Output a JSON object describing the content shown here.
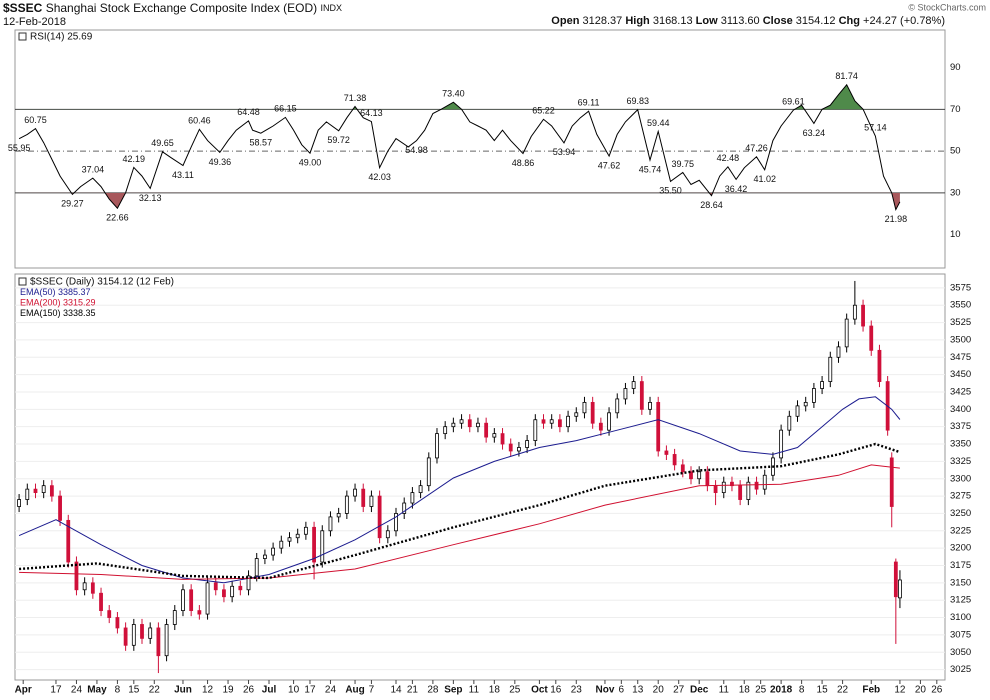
{
  "header": {
    "symbol": "$SSEC",
    "name": "Shanghai Stock Exchange Composite Index (EOD)",
    "exchange": "INDX",
    "date": "12-Feb-2018",
    "watermark": "© StockCharts.com",
    "quote": [
      {
        "label": "Open",
        "value": "3128.37"
      },
      {
        "label": "High",
        "value": "3168.13"
      },
      {
        "label": "Low",
        "value": "3113.60"
      },
      {
        "label": "Close",
        "value": "3154.12"
      },
      {
        "label": "Chg",
        "value": "+24.27 (+0.78%)"
      }
    ]
  },
  "chart_data": [
    {
      "type": "line",
      "label": "RSI(14) 25.69",
      "color": "#000000",
      "overbought": 70,
      "oversold": 30,
      "midline": 50,
      "overbought_color": "#4f8a4a",
      "oversold_color": "#a8585c",
      "x": [
        0,
        2,
        4,
        6,
        8,
        10,
        13,
        15,
        18,
        20,
        22,
        24,
        26,
        28,
        30,
        32,
        35,
        37,
        40,
        42,
        44,
        46,
        49,
        51,
        53,
        56,
        57,
        59,
        62,
        65,
        67,
        69,
        71,
        73,
        75,
        78,
        80,
        82,
        84,
        86,
        88,
        90,
        92,
        95,
        97,
        99,
        101,
        103,
        106,
        108,
        110,
        112,
        114,
        116,
        118,
        120,
        123,
        125,
        128,
        130,
        133,
        135,
        137,
        139,
        141,
        144,
        146,
        148,
        151,
        154,
        156,
        159,
        162,
        164,
        166,
        169,
        171,
        173,
        175,
        177,
        180,
        182,
        184,
        186,
        189,
        191,
        194,
        196,
        198,
        200,
        202,
        204,
        206,
        209,
        211,
        213,
        214,
        215
      ],
      "values": [
        55.95,
        58,
        60.75,
        54,
        46,
        38,
        29.27,
        33,
        37.04,
        33,
        27,
        22.66,
        30,
        42.19,
        38,
        32.13,
        49.65,
        47,
        43.11,
        52,
        60.46,
        55,
        49.36,
        55,
        60,
        64.48,
        60,
        58.57,
        62,
        66.15,
        60,
        53,
        49,
        60,
        64,
        59.72,
        66,
        71.38,
        66,
        64.13,
        42.03,
        50,
        56,
        52,
        54.98,
        60,
        68,
        70,
        73.4,
        70,
        64,
        62,
        60,
        55,
        60,
        55,
        48.86,
        57,
        65.22,
        62,
        53.94,
        62,
        66,
        69.11,
        58,
        47.62,
        58,
        64,
        69.83,
        45.74,
        59.44,
        35.5,
        39.75,
        34,
        36,
        28.64,
        38,
        42.48,
        36.42,
        42,
        47.26,
        41.02,
        55,
        62,
        69.61,
        72,
        63.24,
        70,
        72,
        77,
        81.74,
        74,
        70,
        57.14,
        38,
        30,
        21.98,
        25.69
      ],
      "value_labels": [
        "55.95",
        null,
        "60.75",
        null,
        null,
        null,
        "29.27",
        null,
        "37.04",
        null,
        null,
        "22.66",
        null,
        "42.19",
        null,
        "32.13",
        "49.65",
        null,
        "43.11",
        null,
        "60.46",
        null,
        "49.36",
        null,
        null,
        "64.48",
        null,
        "58.57",
        null,
        "66.15",
        null,
        null,
        "49.00",
        null,
        null,
        "59.72",
        null,
        "71.38",
        null,
        "64.13",
        "42.03",
        null,
        null,
        null,
        "54.98",
        null,
        null,
        null,
        "73.40",
        null,
        null,
        null,
        null,
        null,
        null,
        null,
        "48.86",
        null,
        "65.22",
        null,
        "53.94",
        null,
        null,
        "69.11",
        null,
        "47.62",
        null,
        null,
        "69.83",
        "45.74",
        "59.44",
        "35.50",
        "39.75",
        null,
        null,
        "28.64",
        null,
        "42.48",
        "36.42",
        null,
        "47.26",
        "41.02",
        null,
        null,
        "69.61",
        null,
        "63.24",
        null,
        null,
        null,
        "81.74",
        null,
        null,
        "57.14",
        null,
        null,
        "21.98",
        null
      ],
      "xlim": [
        -1,
        226
      ],
      "ylim": [
        -6,
        108
      ],
      "yticks": [
        10,
        30,
        50,
        70,
        90
      ]
    },
    {
      "type": "candlestick",
      "label": "$SSEC (Daily) 3154.12 (12 Feb)",
      "up_color": "#000000",
      "down_color": "#d0103a",
      "x": [
        0,
        2,
        4,
        6,
        8,
        10,
        12,
        14,
        16,
        18,
        20,
        22,
        24,
        26,
        28,
        30,
        32,
        34,
        36,
        38,
        40,
        42,
        44,
        46,
        48,
        50,
        52,
        54,
        56,
        58,
        60,
        62,
        64,
        66,
        68,
        70,
        72,
        74,
        76,
        78,
        80,
        82,
        84,
        86,
        88,
        90,
        92,
        94,
        96,
        98,
        100,
        102,
        104,
        106,
        108,
        110,
        112,
        114,
        116,
        118,
        120,
        122,
        124,
        126,
        128,
        130,
        132,
        134,
        136,
        138,
        140,
        142,
        144,
        146,
        148,
        150,
        152,
        154,
        156,
        158,
        160,
        162,
        164,
        166,
        168,
        170,
        172,
        174,
        176,
        178,
        180,
        182,
        184,
        186,
        188,
        190,
        192,
        194,
        196,
        198,
        200,
        202,
        204,
        206,
        208,
        210,
        212,
        213,
        214,
        215
      ],
      "open": [
        3260,
        3270,
        3285,
        3280,
        3290,
        3275,
        3240,
        3180,
        3140,
        3150,
        3135,
        3110,
        3100,
        3085,
        3060,
        3090,
        3070,
        3085,
        3045,
        3090,
        3110,
        3140,
        3110,
        3105,
        3150,
        3140,
        3130,
        3145,
        3140,
        3160,
        3185,
        3190,
        3200,
        3210,
        3215,
        3220,
        3230,
        3180,
        3225,
        3245,
        3250,
        3275,
        3285,
        3260,
        3275,
        3215,
        3225,
        3250,
        3265,
        3280,
        3290,
        3330,
        3365,
        3375,
        3380,
        3385,
        3375,
        3380,
        3360,
        3365,
        3350,
        3340,
        3345,
        3355,
        3385,
        3380,
        3385,
        3375,
        3390,
        3395,
        3410,
        3380,
        3370,
        3395,
        3415,
        3430,
        3440,
        3400,
        3410,
        3340,
        3335,
        3320,
        3310,
        3300,
        3310,
        3290,
        3280,
        3295,
        3290,
        3270,
        3295,
        3285,
        3305,
        3330,
        3370,
        3390,
        3405,
        3410,
        3430,
        3440,
        3475,
        3490,
        3530,
        3550,
        3520,
        3485,
        3440,
        3330,
        3180,
        3128.37
      ],
      "high": [
        3278,
        3293,
        3293,
        3298,
        3298,
        3283,
        3248,
        3188,
        3158,
        3158,
        3143,
        3118,
        3108,
        3093,
        3098,
        3098,
        3093,
        3093,
        3098,
        3118,
        3148,
        3148,
        3118,
        3158,
        3158,
        3148,
        3153,
        3153,
        3168,
        3193,
        3198,
        3208,
        3218,
        3223,
        3228,
        3238,
        3238,
        3233,
        3253,
        3258,
        3283,
        3293,
        3293,
        3283,
        3283,
        3233,
        3258,
        3273,
        3288,
        3298,
        3338,
        3373,
        3383,
        3388,
        3393,
        3393,
        3388,
        3388,
        3373,
        3373,
        3358,
        3353,
        3363,
        3393,
        3393,
        3393,
        3393,
        3398,
        3403,
        3418,
        3418,
        3388,
        3403,
        3423,
        3438,
        3448,
        3448,
        3418,
        3418,
        3348,
        3343,
        3328,
        3318,
        3318,
        3318,
        3298,
        3303,
        3303,
        3298,
        3303,
        3303,
        3313,
        3338,
        3378,
        3398,
        3413,
        3418,
        3438,
        3448,
        3483,
        3498,
        3538,
        3585,
        3558,
        3528,
        3493,
        3448,
        3338,
        3185,
        3168.13
      ],
      "low": [
        3252,
        3262,
        3272,
        3272,
        3267,
        3232,
        3172,
        3132,
        3132,
        3127,
        3102,
        3092,
        3077,
        3052,
        3052,
        3062,
        3062,
        3020,
        3037,
        3082,
        3102,
        3102,
        3097,
        3097,
        3132,
        3122,
        3122,
        3132,
        3132,
        3152,
        3177,
        3182,
        3192,
        3202,
        3207,
        3212,
        3155,
        3172,
        3217,
        3237,
        3242,
        3267,
        3252,
        3252,
        3207,
        3207,
        3217,
        3242,
        3257,
        3272,
        3282,
        3322,
        3357,
        3367,
        3372,
        3367,
        3367,
        3352,
        3352,
        3342,
        3332,
        3332,
        3337,
        3347,
        3372,
        3372,
        3367,
        3367,
        3382,
        3387,
        3372,
        3362,
        3362,
        3387,
        3407,
        3422,
        3392,
        3392,
        3332,
        3327,
        3312,
        3302,
        3292,
        3292,
        3282,
        3262,
        3272,
        3282,
        3262,
        3262,
        3277,
        3277,
        3297,
        3322,
        3362,
        3382,
        3397,
        3402,
        3422,
        3432,
        3467,
        3482,
        3522,
        3512,
        3477,
        3432,
        3362,
        3230,
        3062,
        3113.6
      ],
      "close": [
        3270,
        3285,
        3280,
        3290,
        3275,
        3240,
        3180,
        3140,
        3150,
        3135,
        3110,
        3100,
        3085,
        3060,
        3090,
        3070,
        3085,
        3045,
        3090,
        3110,
        3140,
        3110,
        3105,
        3150,
        3140,
        3130,
        3145,
        3140,
        3160,
        3185,
        3190,
        3200,
        3210,
        3215,
        3220,
        3230,
        3180,
        3225,
        3245,
        3250,
        3275,
        3285,
        3260,
        3275,
        3215,
        3225,
        3250,
        3265,
        3280,
        3290,
        3330,
        3365,
        3375,
        3380,
        3385,
        3375,
        3380,
        3360,
        3365,
        3350,
        3340,
        3345,
        3355,
        3385,
        3380,
        3385,
        3375,
        3390,
        3395,
        3410,
        3380,
        3370,
        3395,
        3415,
        3430,
        3440,
        3400,
        3410,
        3340,
        3335,
        3320,
        3310,
        3300,
        3310,
        3290,
        3280,
        3295,
        3290,
        3270,
        3295,
        3285,
        3305,
        3330,
        3370,
        3390,
        3405,
        3410,
        3430,
        3440,
        3475,
        3490,
        3530,
        3550,
        3520,
        3485,
        3440,
        3370,
        3260,
        3130,
        3154.12
      ],
      "series": [
        {
          "name": "EMA(50)",
          "color": "#1c1c8f",
          "style": "solid",
          "x": [
            0,
            9,
            20,
            30,
            40,
            50,
            61,
            72,
            82,
            92,
            106,
            116,
            127,
            136,
            146,
            156,
            166,
            176,
            184,
            190,
            196,
            201,
            205,
            209,
            213,
            215
          ],
          "values": [
            3218,
            3241,
            3205,
            3175,
            3157,
            3150,
            3162,
            3185,
            3212,
            3245,
            3301,
            3325,
            3345,
            3355,
            3370,
            3385,
            3365,
            3340,
            3335,
            3345,
            3375,
            3400,
            3415,
            3418,
            3400,
            3385.37
          ]
        },
        {
          "name": "EMA(200)",
          "color": "#d01030",
          "style": "solid",
          "x": [
            0,
            20,
            40,
            61,
            82,
            106,
            127,
            143,
            166,
            186,
            200,
            208,
            215
          ],
          "values": [
            3165,
            3162,
            3155,
            3157,
            3170,
            3205,
            3235,
            3262,
            3290,
            3292,
            3305,
            3320,
            3315.29
          ]
        },
        {
          "name": "EMA(150)",
          "color": "#000000",
          "style": "dotted",
          "x": [
            0,
            19,
            40,
            61,
            82,
            106,
            127,
            143,
            166,
            186,
            200,
            209,
            215
          ],
          "values": [
            3170,
            3178,
            3160,
            3157,
            3190,
            3230,
            3262,
            3290,
            3312,
            3318,
            3335,
            3350,
            3338.35
          ]
        }
      ],
      "xlim": [
        -1,
        226
      ],
      "xticks": [
        {
          "value": 1,
          "label": "Apr"
        },
        {
          "value": 9,
          "label": "17"
        },
        {
          "value": 14,
          "label": "24"
        },
        {
          "value": 19,
          "label": "May"
        },
        {
          "value": 24,
          "label": "8"
        },
        {
          "value": 28,
          "label": "15"
        },
        {
          "value": 33,
          "label": "22"
        },
        {
          "value": 40,
          "label": "Jun"
        },
        {
          "value": 46,
          "label": "12"
        },
        {
          "value": 51,
          "label": "19"
        },
        {
          "value": 56,
          "label": "26"
        },
        {
          "value": 61,
          "label": "Jul"
        },
        {
          "value": 67,
          "label": "10"
        },
        {
          "value": 71,
          "label": "17"
        },
        {
          "value": 76,
          "label": "24"
        },
        {
          "value": 82,
          "label": "Aug"
        },
        {
          "value": 86,
          "label": "7"
        },
        {
          "value": 92,
          "label": "14"
        },
        {
          "value": 96,
          "label": "21"
        },
        {
          "value": 101,
          "label": "28"
        },
        {
          "value": 106,
          "label": "Sep"
        },
        {
          "value": 111,
          "label": "11"
        },
        {
          "value": 116,
          "label": "18"
        },
        {
          "value": 121,
          "label": "25"
        },
        {
          "value": 127,
          "label": "Oct"
        },
        {
          "value": 131,
          "label": "16"
        },
        {
          "value": 136,
          "label": "23"
        },
        {
          "value": 143,
          "label": "Nov"
        },
        {
          "value": 147,
          "label": "6"
        },
        {
          "value": 151,
          "label": "13"
        },
        {
          "value": 156,
          "label": "20"
        },
        {
          "value": 161,
          "label": "27"
        },
        {
          "value": 166,
          "label": "Dec"
        },
        {
          "value": 172,
          "label": "11"
        },
        {
          "value": 177,
          "label": "18"
        },
        {
          "value": 181,
          "label": "25"
        },
        {
          "value": 186,
          "label": "2018"
        },
        {
          "value": 191,
          "label": "8"
        },
        {
          "value": 196,
          "label": "15"
        },
        {
          "value": 201,
          "label": "22"
        },
        {
          "value": 208,
          "label": "Feb"
        },
        {
          "value": 215,
          "label": "12"
        },
        {
          "value": 220,
          "label": "20"
        },
        {
          "value": 224,
          "label": "26"
        }
      ],
      "ylim": [
        3010,
        3595
      ],
      "yticks": [
        3025,
        3050,
        3075,
        3100,
        3125,
        3150,
        3175,
        3200,
        3225,
        3250,
        3275,
        3300,
        3325,
        3350,
        3375,
        3400,
        3425,
        3450,
        3475,
        3500,
        3525,
        3550,
        3575
      ],
      "grid": true
    }
  ]
}
